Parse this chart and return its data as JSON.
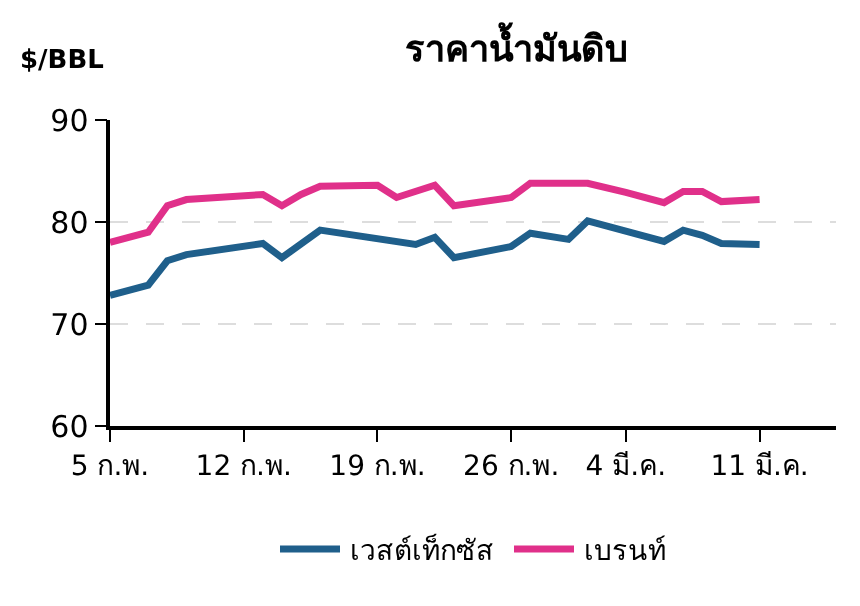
{
  "chart_data": {
    "type": "line",
    "title": "ราคาน้ำมันดิบ",
    "ylabel": "$/BBL",
    "series": [
      {
        "name": "เวสต์เท็กซัส",
        "color": "#1f5f8b",
        "x": [
          "--02-05",
          "--02-07",
          "--02-08",
          "--02-09",
          "--02-13",
          "--02-14",
          "--02-16",
          "--02-21",
          "--02-22",
          "--02-23",
          "--02-26",
          "--02-27",
          "--03-01",
          "--03-02",
          "--03-06",
          "--03-07",
          "--03-08",
          "--03-09",
          "--03-11"
        ],
        "values": [
          72.8,
          73.8,
          76.2,
          76.8,
          77.9,
          76.5,
          79.2,
          77.8,
          78.5,
          76.5,
          77.6,
          78.9,
          78.3,
          80.1,
          78.1,
          79.2,
          78.7,
          77.9,
          77.8
        ]
      },
      {
        "name": "เบรนท์",
        "color": "#e0308a",
        "x": [
          "--02-05",
          "--02-07",
          "--02-08",
          "--02-09",
          "--02-13",
          "--02-14",
          "--02-15",
          "--02-16",
          "--02-19",
          "--02-20",
          "--02-22",
          "--02-23",
          "--02-26",
          "--02-27",
          "--03-02",
          "--03-04",
          "--03-06",
          "--03-07",
          "--03-08",
          "--03-09",
          "--03-11"
        ],
        "values": [
          78.0,
          79.0,
          81.6,
          82.2,
          82.7,
          81.6,
          82.7,
          83.5,
          83.6,
          82.4,
          83.6,
          81.6,
          82.4,
          83.8,
          83.8,
          82.9,
          81.9,
          83.0,
          83.0,
          82.0,
          82.2
        ]
      }
    ],
    "xlim": [
      "--02-05",
      "--03-15"
    ],
    "xticks": [
      {
        "value": "--02-05",
        "label": "5 ก.พ."
      },
      {
        "value": "--02-12",
        "label": "12 ก.พ."
      },
      {
        "value": "--02-19",
        "label": "19 ก.พ."
      },
      {
        "value": "--02-26",
        "label": "26 ก.พ."
      },
      {
        "value": "--03-04",
        "label": "4 มี.ค."
      },
      {
        "value": "--03-11",
        "label": "11 มี.ค."
      }
    ],
    "ylim": [
      60,
      90
    ],
    "yticks": [
      60,
      70,
      80,
      90
    ],
    "grid": "y",
    "legend": "bottom",
    "marker": "none",
    "line_style": "solid"
  }
}
